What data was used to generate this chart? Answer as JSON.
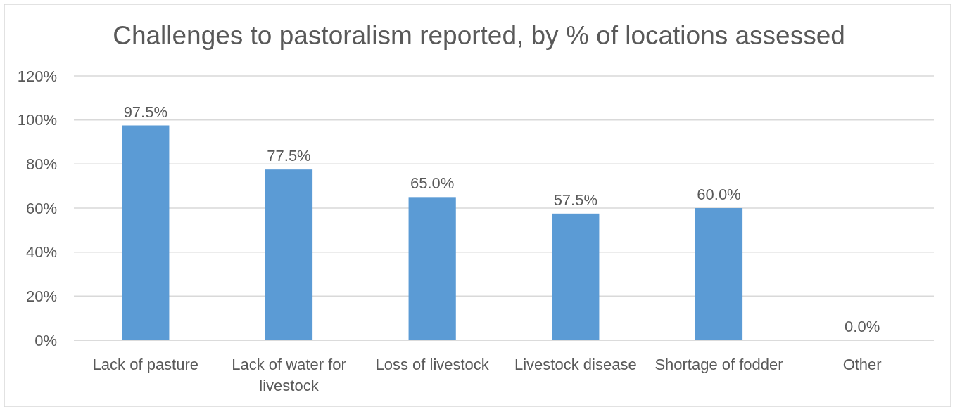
{
  "chart_data": {
    "type": "bar",
    "title": "Challenges to pastoralism reported, by % of locations assessed",
    "categories": [
      "Lack of pasture",
      "Lack of water for livestock",
      "Loss of livestock",
      "Livestock disease",
      "Shortage of fodder",
      "Other"
    ],
    "values": [
      97.5,
      77.5,
      65.0,
      57.5,
      60.0,
      0.0
    ],
    "color": "#5b9bd5",
    "value_labels": [
      "97.5%",
      "77.5%",
      "65.0%",
      "57.5%",
      "60.0%",
      "0.0%"
    ],
    "ylim": [
      0,
      120
    ],
    "yticks": [
      {
        "value": 0,
        "label": "0%"
      },
      {
        "value": 20,
        "label": "20%"
      },
      {
        "value": 40,
        "label": "40%"
      },
      {
        "value": 60,
        "label": "60%"
      },
      {
        "value": 80,
        "label": "80%"
      },
      {
        "value": 100,
        "label": "100%"
      },
      {
        "value": 120,
        "label": "120%"
      }
    ],
    "grid": "y"
  }
}
